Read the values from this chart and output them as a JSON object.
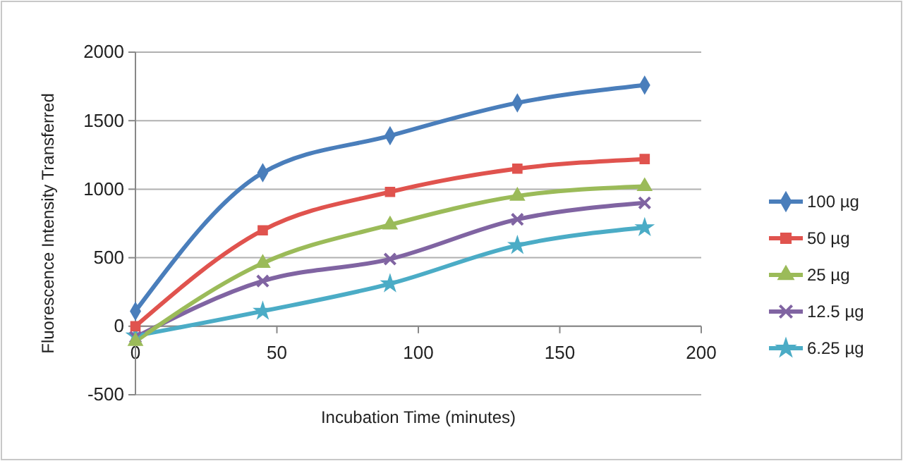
{
  "chart_data": {
    "type": "line",
    "xlabel": "Incubation Time (minutes)",
    "ylabel": "Fluorescence Intensity Transferred",
    "x": [
      0,
      45,
      90,
      135,
      180
    ],
    "series": [
      {
        "name": "100 µg",
        "color": "#4a7ebb",
        "marker": "diamond",
        "values": [
          110,
          1120,
          1390,
          1630,
          1760
        ]
      },
      {
        "name": "50 µg",
        "color": "#e0534e",
        "marker": "square",
        "values": [
          0,
          700,
          980,
          1150,
          1220
        ]
      },
      {
        "name": "25 µg",
        "color": "#9bbb59",
        "marker": "triangle",
        "values": [
          -110,
          460,
          740,
          950,
          1020
        ]
      },
      {
        "name": "12.5 µg",
        "color": "#8064a2",
        "marker": "cross",
        "values": [
          -80,
          330,
          490,
          780,
          900
        ]
      },
      {
        "name": "6.25 µg",
        "color": "#4bacc6",
        "marker": "star",
        "values": [
          -70,
          110,
          310,
          590,
          720
        ]
      }
    ],
    "xlim": [
      0,
      200
    ],
    "xticks": [
      0,
      50,
      100,
      150,
      200
    ],
    "ylim": [
      -500,
      2000
    ],
    "yticks": [
      -500,
      0,
      500,
      1000,
      1500,
      2000
    ],
    "grid": "y",
    "legend": "right"
  }
}
